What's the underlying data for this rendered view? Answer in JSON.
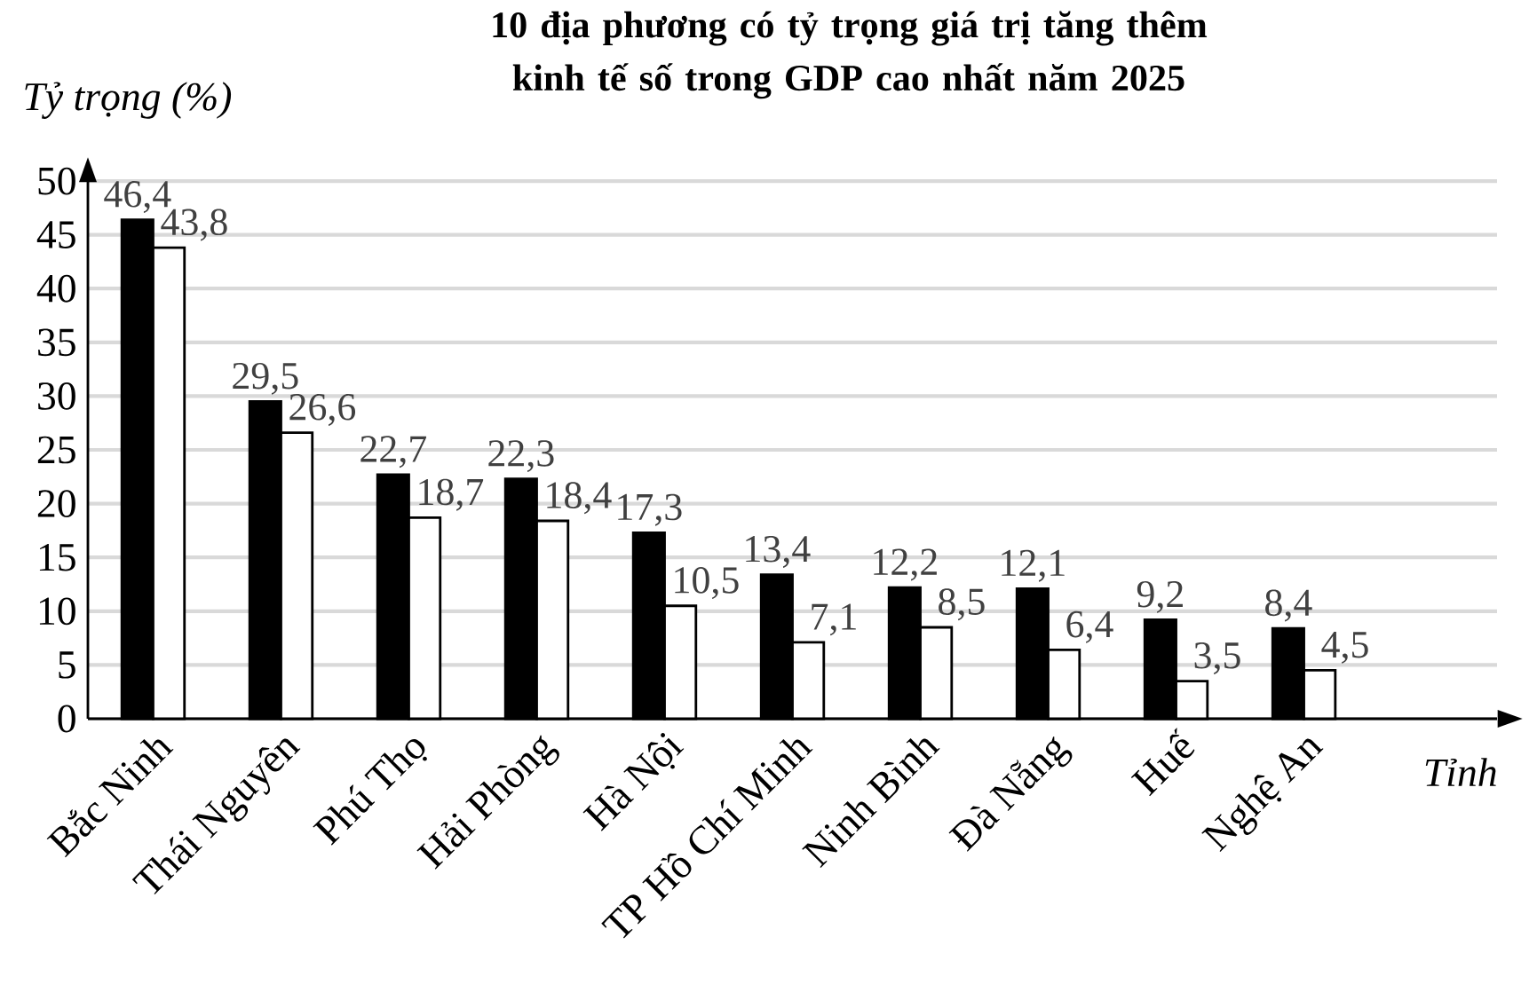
{
  "chart_data": {
    "type": "bar",
    "title": "10 địa phương có tỷ trọng giá trị tăng thêm kinh tế số trong GDP cao nhất năm 2025",
    "xlabel": "Tỉnh",
    "ylabel": "Tỷ trọng (%)",
    "categories": [
      "Bắc Ninh",
      "Thái Nguyên",
      "Phú Thọ",
      "Hải Phòng",
      "Hà Nội",
      "TP Hồ Chí Minh",
      "Ninh Bình",
      "Đà Nẵng",
      "Huế",
      "Nghệ An"
    ],
    "series": [
      {
        "color": "#000000",
        "values": [
          46.4,
          29.5,
          22.7,
          22.3,
          17.3,
          13.4,
          12.2,
          12.1,
          9.2,
          8.4
        ],
        "value_labels": [
          "46,4",
          "29,5",
          "22,7",
          "22,3",
          "17,3",
          "13,4",
          "12,2",
          "12,1",
          "9,2",
          "8,4"
        ]
      },
      {
        "color": "#ffffff",
        "values": [
          43.8,
          26.6,
          18.7,
          18.4,
          10.5,
          7.1,
          8.5,
          6.4,
          3.5,
          4.5
        ],
        "value_labels": [
          "43,8",
          "26,6",
          "18,7",
          "18,4",
          "10,5",
          "7,1",
          "8,5",
          "6,4",
          "3,5",
          "4,5"
        ]
      }
    ],
    "ylim": [
      0,
      50
    ],
    "yticks": [
      0,
      5,
      10,
      15,
      20,
      25,
      30,
      35,
      40,
      45,
      50
    ],
    "grid": "y"
  }
}
